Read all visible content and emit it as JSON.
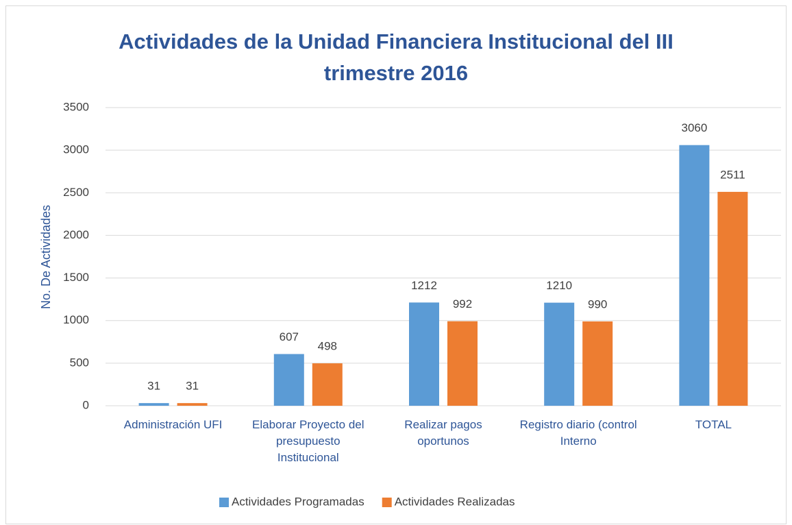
{
  "chart_data": {
    "type": "bar",
    "title": "Actividades de la Unidad Financiera Institucional del III trimestre 2016",
    "y_label": "No. De Actividades",
    "categories": [
      "Administración UFI",
      "Elaborar Proyecto del presupuesto Institucional",
      "Realizar pagos oportunos",
      "Registro diario (control Interno",
      "TOTAL"
    ],
    "series": [
      {
        "name": "Actividades Programadas",
        "color": "#5b9bd5",
        "values": [
          31,
          607,
          1212,
          1210,
          3060
        ]
      },
      {
        "name": "Actividades Realizadas",
        "color": "#ed7d31",
        "values": [
          31,
          498,
          992,
          990,
          2511
        ]
      }
    ],
    "ylim": [
      0,
      3500
    ],
    "yticks": [
      0,
      500,
      1000,
      1500,
      2000,
      2500,
      3000,
      3500
    ],
    "grid": true,
    "legend": "bottom"
  }
}
